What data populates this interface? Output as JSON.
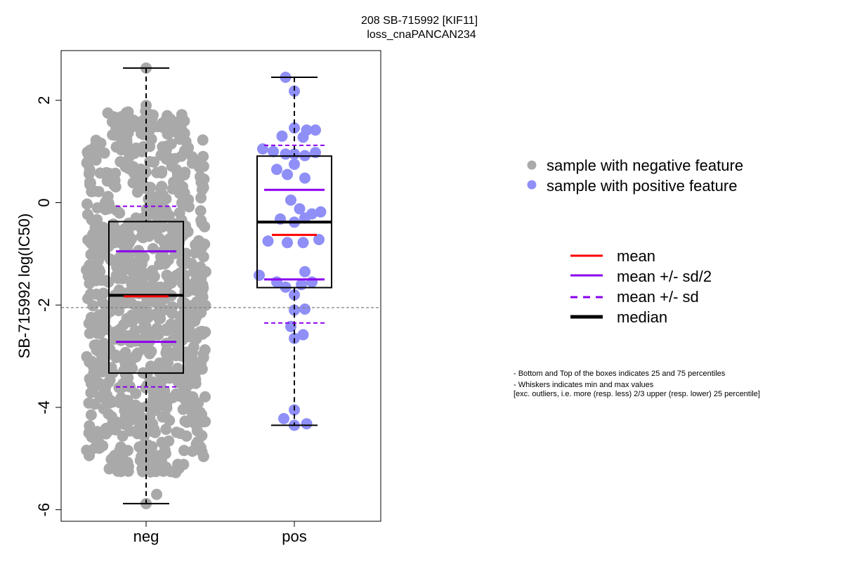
{
  "chart_data": {
    "type": "scatter",
    "title": "208 SB-715992 [KIF11]",
    "subtitle": "loss_cnaPANCAN234",
    "ylabel": "SB-715992 log(IC50)",
    "ylim": [
      -6.2,
      3.0
    ],
    "yticks": [
      -6,
      -4,
      -2,
      0,
      2
    ],
    "ytick_labels": [
      "-6",
      "-4",
      "-2",
      "0",
      "2"
    ],
    "categories": [
      "neg",
      "pos"
    ],
    "reference_line": -2.05,
    "colors": {
      "neg_points": "#a9a9a9",
      "pos_points": "#8f8ff7",
      "mean": "#ff0000",
      "sd": "#8b00ee",
      "median": "#000000",
      "reference": "#808080"
    },
    "boxes": [
      {
        "name": "neg",
        "q1": -3.33,
        "q3": -0.37,
        "median": -1.81,
        "mean": -1.83,
        "mean_plus_half_sd": -0.95,
        "mean_minus_half_sd": -2.72,
        "mean_plus_sd": -0.07,
        "mean_minus_sd": -3.6,
        "whisker_low": -5.88,
        "whisker_high": 2.63
      },
      {
        "name": "pos",
        "q1": -1.66,
        "q3": 0.91,
        "median": -0.38,
        "mean": -0.63,
        "mean_plus_half_sd": 0.25,
        "mean_minus_half_sd": -1.5,
        "mean_plus_sd": 1.12,
        "mean_minus_sd": -2.35,
        "whisker_low": -4.35,
        "whisker_high": 2.45
      }
    ],
    "points": {
      "pos": [
        {
          "x": -0.05,
          "y": 2.45
        },
        {
          "x": 0.0,
          "y": 2.18
        },
        {
          "x": 0.07,
          "y": 1.42
        },
        {
          "x": 0.0,
          "y": 1.46
        },
        {
          "x": 0.12,
          "y": 1.42
        },
        {
          "x": -0.07,
          "y": 1.3
        },
        {
          "x": 0.05,
          "y": 1.28
        },
        {
          "x": -0.18,
          "y": 1.05
        },
        {
          "x": -0.12,
          "y": 1.0
        },
        {
          "x": -0.05,
          "y": 0.95
        },
        {
          "x": 0.0,
          "y": 0.95
        },
        {
          "x": 0.06,
          "y": 0.92
        },
        {
          "x": 0.12,
          "y": 0.98
        },
        {
          "x": 0.0,
          "y": 0.75
        },
        {
          "x": -0.1,
          "y": 0.65
        },
        {
          "x": -0.04,
          "y": 0.55
        },
        {
          "x": 0.06,
          "y": 0.48
        },
        {
          "x": -0.02,
          "y": 0.05
        },
        {
          "x": 0.03,
          "y": -0.12
        },
        {
          "x": 0.1,
          "y": -0.22
        },
        {
          "x": 0.15,
          "y": -0.18
        },
        {
          "x": -0.08,
          "y": -0.32
        },
        {
          "x": 0.0,
          "y": -0.38
        },
        {
          "x": 0.06,
          "y": -0.3
        },
        {
          "x": -0.15,
          "y": -0.75
        },
        {
          "x": -0.04,
          "y": -0.78
        },
        {
          "x": 0.05,
          "y": -0.78
        },
        {
          "x": 0.14,
          "y": -0.72
        },
        {
          "x": -0.2,
          "y": -1.42
        },
        {
          "x": 0.06,
          "y": -1.35
        },
        {
          "x": -0.1,
          "y": -1.55
        },
        {
          "x": -0.05,
          "y": -1.65
        },
        {
          "x": 0.04,
          "y": -1.6
        },
        {
          "x": 0.1,
          "y": -1.55
        },
        {
          "x": 0.0,
          "y": -1.8
        },
        {
          "x": 0.0,
          "y": -2.1
        },
        {
          "x": 0.06,
          "y": -2.08
        },
        {
          "x": -0.02,
          "y": -2.42
        },
        {
          "x": 0.05,
          "y": -2.58
        },
        {
          "x": 0.0,
          "y": -2.65
        },
        {
          "x": 0.0,
          "y": -4.05
        },
        {
          "x": -0.06,
          "y": -4.22
        },
        {
          "x": 0.0,
          "y": -4.35
        },
        {
          "x": 0.07,
          "y": -4.32
        }
      ],
      "neg_summary": {
        "count": 850,
        "min": -5.88,
        "max": 2.63,
        "median": -1.81,
        "q1": -3.33,
        "q3": -0.37
      }
    }
  },
  "legend_points": [
    {
      "label": "sample with negative feature",
      "color": "#a9a9a9"
    },
    {
      "label": "sample with positive feature",
      "color": "#8f8ff7"
    }
  ],
  "legend_lines": [
    {
      "label": "mean",
      "color": "#ff0000",
      "style": "solid"
    },
    {
      "label": "mean +/- sd/2",
      "color": "#8b00ee",
      "style": "solid"
    },
    {
      "label": "mean +/- sd",
      "color": "#8b00ee",
      "style": "dashed"
    },
    {
      "label": "median",
      "color": "#000000",
      "style": "thick"
    }
  ],
  "notes": [
    "- Bottom and Top of the boxes indicates 25 and 75 percentiles",
    "- Whiskers indicates min and max values",
    "[exc. outliers, i.e. more (resp. less) 2/3 upper (resp. lower) 25 percentile]"
  ]
}
